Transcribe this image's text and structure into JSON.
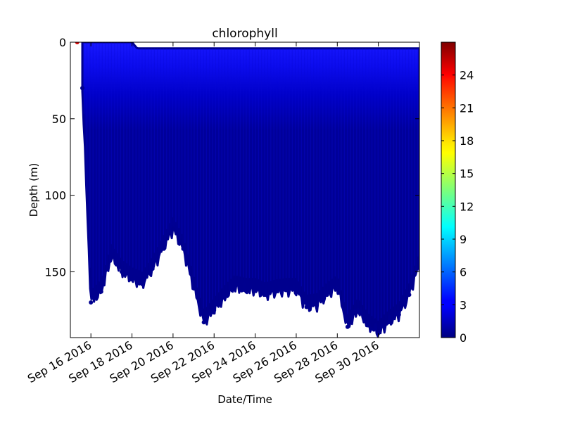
{
  "chart_data": {
    "type": "scatter",
    "title": "chlorophyll",
    "xlabel": "Date/Time",
    "ylabel": "Depth (m)",
    "x_range": [
      "2016-09-15",
      "2016-10-02"
    ],
    "ylim": [
      193,
      0
    ],
    "y_inverted": true,
    "y_ticks": [
      0,
      50,
      100,
      150
    ],
    "x_tick_labels": [
      {
        "date": "2016-09-16",
        "label": "Sep 16 2016"
      },
      {
        "date": "2016-09-18",
        "label": "Sep 18 2016"
      },
      {
        "date": "2016-09-20",
        "label": "Sep 20 2016"
      },
      {
        "date": "2016-09-22",
        "label": "Sep 22 2016"
      },
      {
        "date": "2016-09-24",
        "label": "Sep 24 2016"
      },
      {
        "date": "2016-09-26",
        "label": "Sep 26 2016"
      },
      {
        "date": "2016-09-28",
        "label": "Sep 28 2016"
      },
      {
        "date": "2016-09-30",
        "label": "Sep 30 2016"
      }
    ],
    "colorbar": {
      "colormap": "jet",
      "range": [
        0,
        27
      ],
      "ticks": [
        0,
        3,
        6,
        9,
        12,
        15,
        18,
        21,
        24
      ]
    },
    "outlier_point": {
      "date": "2016-09-15",
      "hour": 8,
      "depth": 0,
      "value": 27
    },
    "profile_bottom_depth": [
      {
        "date": "2016-09-15",
        "hour": 14,
        "depth": 30
      },
      {
        "date": "2016-09-16",
        "hour": 0,
        "depth": 170
      },
      {
        "date": "2016-09-16",
        "hour": 12,
        "depth": 163
      },
      {
        "date": "2016-09-17",
        "hour": 0,
        "depth": 140
      },
      {
        "date": "2016-09-17",
        "hour": 12,
        "depth": 150
      },
      {
        "date": "2016-09-18",
        "hour": 0,
        "depth": 155
      },
      {
        "date": "2016-09-18",
        "hour": 12,
        "depth": 158
      },
      {
        "date": "2016-09-19",
        "hour": 0,
        "depth": 148
      },
      {
        "date": "2016-09-19",
        "hour": 12,
        "depth": 135
      },
      {
        "date": "2016-09-20",
        "hour": 0,
        "depth": 122
      },
      {
        "date": "2016-09-20",
        "hour": 12,
        "depth": 135
      },
      {
        "date": "2016-09-21",
        "hour": 0,
        "depth": 160
      },
      {
        "date": "2016-09-21",
        "hour": 12,
        "depth": 183
      },
      {
        "date": "2016-09-22",
        "hour": 0,
        "depth": 175
      },
      {
        "date": "2016-09-22",
        "hour": 12,
        "depth": 167
      },
      {
        "date": "2016-09-23",
        "hour": 0,
        "depth": 160
      },
      {
        "date": "2016-09-23",
        "hour": 12,
        "depth": 162
      },
      {
        "date": "2016-09-24",
        "hour": 0,
        "depth": 162
      },
      {
        "date": "2016-09-24",
        "hour": 12,
        "depth": 165
      },
      {
        "date": "2016-09-25",
        "hour": 0,
        "depth": 163
      },
      {
        "date": "2016-09-25",
        "hour": 12,
        "depth": 162
      },
      {
        "date": "2016-09-26",
        "hour": 0,
        "depth": 162
      },
      {
        "date": "2016-09-26",
        "hour": 12,
        "depth": 173
      },
      {
        "date": "2016-09-27",
        "hour": 0,
        "depth": 172
      },
      {
        "date": "2016-09-27",
        "hour": 12,
        "depth": 165
      },
      {
        "date": "2016-09-28",
        "hour": 0,
        "depth": 160
      },
      {
        "date": "2016-09-28",
        "hour": 12,
        "depth": 186
      },
      {
        "date": "2016-09-29",
        "hour": 0,
        "depth": 175
      },
      {
        "date": "2016-09-29",
        "hour": 12,
        "depth": 185
      },
      {
        "date": "2016-09-30",
        "hour": 0,
        "depth": 190
      },
      {
        "date": "2016-09-30",
        "hour": 12,
        "depth": 183
      },
      {
        "date": "2016-10-01",
        "hour": 0,
        "depth": 178
      },
      {
        "date": "2016-10-01",
        "hour": 12,
        "depth": 165
      },
      {
        "date": "2016-10-02",
        "hour": 0,
        "depth": 145
      }
    ],
    "profile_top_depth": [
      {
        "date": "2016-09-15",
        "hour": 14,
        "depth": 0
      },
      {
        "date": "2016-09-18",
        "hour": 0,
        "depth": 0
      },
      {
        "date": "2016-09-18",
        "hour": 6,
        "depth": 4
      },
      {
        "date": "2016-10-02",
        "hour": 0,
        "depth": 4
      }
    ],
    "colors": {
      "background": "#ffffff",
      "deep_water": "#00008f",
      "mid_water": "#0000c8",
      "surface_water": "#1010f6",
      "outlier": "#d80000"
    }
  }
}
